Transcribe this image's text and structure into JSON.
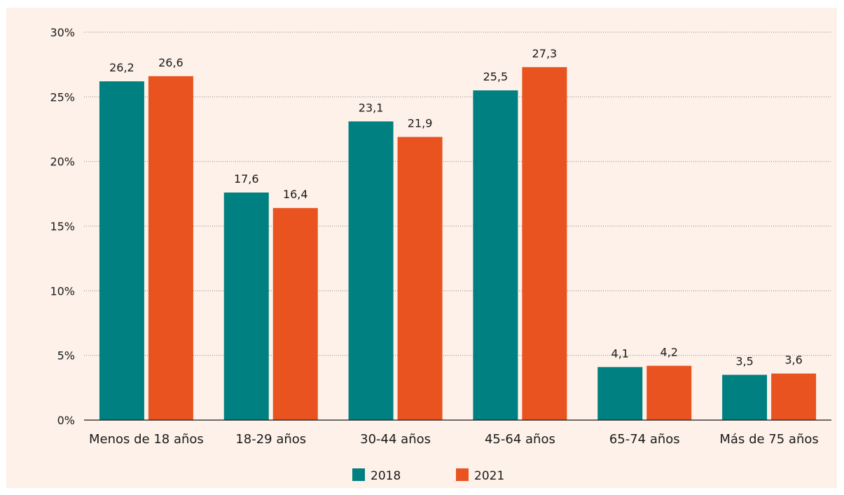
{
  "chart_data": {
    "type": "bar",
    "categories": [
      "Menos de 18 años",
      "18-29 años",
      "30-44 años",
      "45-64 años",
      "65-74 años",
      "Más de 75 años"
    ],
    "series": [
      {
        "name": "2018",
        "values": [
          26.2,
          17.6,
          23.1,
          25.5,
          4.1,
          3.5
        ],
        "labels": [
          "26,2",
          "17,6",
          "23,1",
          "25,5",
          "4,1",
          "3,5"
        ],
        "color": "#008080"
      },
      {
        "name": "2021",
        "values": [
          26.6,
          16.4,
          21.9,
          27.3,
          4.2,
          3.6
        ],
        "labels": [
          "26,6",
          "16,4",
          "21,9",
          "27,3",
          "4,2",
          "3,6"
        ],
        "color": "#e8531f"
      }
    ],
    "y_ticks": [
      0,
      5,
      10,
      15,
      20,
      25,
      30
    ],
    "y_tick_labels": [
      "0%",
      "5%",
      "10%",
      "15%",
      "20%",
      "25%",
      "30%"
    ],
    "ylim": [
      0,
      30
    ],
    "grid": true,
    "legend_position": "bottom",
    "background": "#fdf1e9"
  }
}
